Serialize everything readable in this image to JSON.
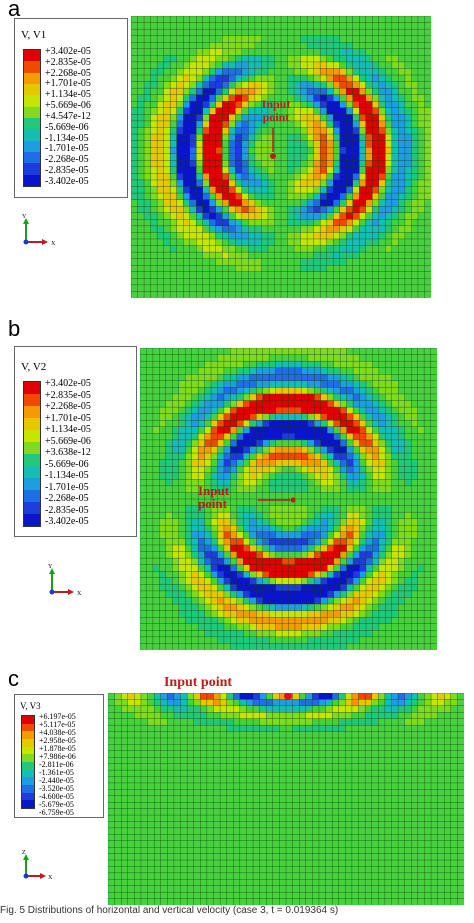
{
  "panels": [
    {
      "letter": "a",
      "legend_title": "V, V1",
      "ticks": [
        "+3.402e-05",
        "+2.835e-05",
        "+2.268e-05",
        "+1.701e-05",
        "+1.134e-05",
        "+5.669e-06",
        "+4.547e-12",
        "-5.669e-06",
        "-1.134e-05",
        "-1.701e-05",
        "-2.268e-05",
        "-2.835e-05",
        "-3.402e-05"
      ],
      "annotation": "Input\npoint"
    },
    {
      "letter": "b",
      "legend_title": "V, V2",
      "ticks": [
        "+3.402e-05",
        "+2.835e-05",
        "+2.268e-05",
        "+1.701e-05",
        "+1.134e-05",
        "+5.669e-06",
        "+3.638e-12",
        "-5.669e-06",
        "-1.134e-05",
        "-1.701e-05",
        "-2.268e-05",
        "-2.835e-05",
        "-3.402e-05"
      ],
      "annotation": "Input\npoint"
    },
    {
      "letter": "c",
      "legend_title": "V, V3",
      "ticks": [
        "+6.197e-05",
        "+5.117e-05",
        "+4.038e-05",
        "+2.958e-05",
        "+1.878e-05",
        "+7.986e-06",
        "-2.811e-06",
        "-1.361e-05",
        "-2.440e-05",
        "-3.520e-05",
        "-4.600e-05",
        "-5.679e-05",
        "-6.759e-05"
      ],
      "annotation": "Input point"
    }
  ],
  "colormap": [
    "#e00000",
    "#f04a00",
    "#f59a00",
    "#e6c800",
    "#c4e600",
    "#7ddc1f",
    "#46d23c",
    "#20c878",
    "#14beb4",
    "#1e9ee0",
    "#1e6ee6",
    "#1e3cdc",
    "#0a14c8"
  ],
  "axis_labels": {
    "x": "X",
    "y": "Y",
    "z": "Z"
  },
  "caption": "Fig. 5 Distributions of horizontal and vertical velocity (case 3, t = 0.019364 s)"
}
